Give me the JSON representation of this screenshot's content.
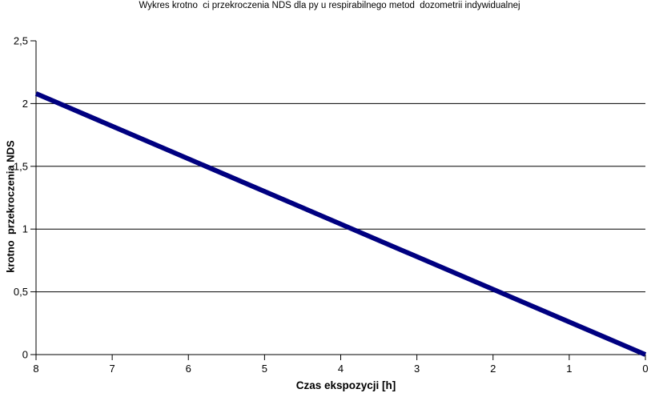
{
  "window": {
    "background": "#ffffff"
  },
  "chart_data": {
    "type": "line",
    "title": "Wykres krotno  ci przekroczenia NDS dla py u respirabilnego metod  dozometrii indywidualnej",
    "xlabel": "Czas ekspozycji [h]",
    "ylabel": "krotno  przekroczenia NDS",
    "xlim": [
      8,
      0
    ],
    "ylim": [
      0,
      2.5
    ],
    "x_axis_reversed": true,
    "x_ticks": [
      8,
      7,
      6,
      5,
      4,
      3,
      2,
      1,
      0
    ],
    "x_tick_labels": [
      "8",
      "7",
      "6",
      "5",
      "4",
      "3",
      "2",
      "1",
      "0"
    ],
    "y_ticks": [
      0,
      0.5,
      1,
      1.5,
      2,
      2.5
    ],
    "y_tick_labels": [
      "0",
      "0,5",
      "1",
      "1,5",
      "2",
      "2,5"
    ],
    "gridlines_y": [
      0.5,
      1,
      1.5,
      2
    ],
    "grid": "horizontal",
    "legend": "none",
    "series": [
      {
        "x": [
          8,
          0
        ],
        "y": [
          2.08,
          0
        ],
        "color": "#000080",
        "stroke_width": 6
      }
    ],
    "colors": {
      "line": "#000080",
      "axis": "#000000",
      "gridline": "#000000",
      "text": "#000000"
    }
  }
}
